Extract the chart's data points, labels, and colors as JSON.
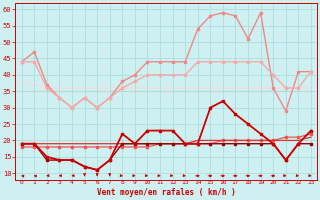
{
  "x": [
    0,
    1,
    2,
    3,
    4,
    5,
    6,
    7,
    8,
    9,
    10,
    11,
    12,
    13,
    14,
    15,
    16,
    17,
    18,
    19,
    20,
    21,
    22,
    23
  ],
  "bg_color": "#cff0f0",
  "grid_color": "#aadddd",
  "xlabel": "Vent moyen/en rafales ( km/h )",
  "ylim": [
    8,
    62
  ],
  "yticks": [
    10,
    15,
    20,
    25,
    30,
    35,
    40,
    45,
    50,
    55,
    60
  ],
  "lines": [
    {
      "values": [
        44,
        47,
        37,
        33,
        30,
        33,
        30,
        33,
        38,
        40,
        44,
        44,
        44,
        44,
        54,
        58,
        59,
        58,
        51,
        59,
        36,
        29,
        41,
        41
      ],
      "color": "#f08888",
      "lw": 1.0,
      "marker": "s",
      "ms": 1.8,
      "zorder": 2
    },
    {
      "values": [
        44,
        44,
        36,
        33,
        30,
        33,
        30,
        33,
        36,
        38,
        40,
        40,
        40,
        40,
        44,
        44,
        44,
        44,
        44,
        44,
        40,
        36,
        36,
        41
      ],
      "color": "#f4aaaa",
      "lw": 1.0,
      "marker": "s",
      "ms": 1.8,
      "zorder": 2
    },
    {
      "values": [
        35,
        35,
        35,
        35,
        35,
        35,
        35,
        35,
        35,
        35,
        35,
        35,
        35,
        35,
        35,
        35,
        35,
        35,
        35,
        35,
        35,
        35,
        35,
        35
      ],
      "color": "#f8cccc",
      "lw": 0.9,
      "marker": null,
      "ms": 0,
      "zorder": 1
    },
    {
      "values": [
        38,
        37,
        36,
        36,
        36,
        36,
        36,
        36,
        36,
        36,
        36,
        36,
        36,
        36,
        36,
        36,
        36,
        36,
        36,
        36,
        36,
        36,
        36,
        36
      ],
      "color": "#fad8d8",
      "lw": 0.9,
      "marker": null,
      "ms": 0,
      "zorder": 1
    },
    {
      "values": [
        19,
        19,
        15,
        14,
        14,
        12,
        11,
        14,
        22,
        19,
        23,
        23,
        23,
        19,
        19,
        30,
        32,
        28,
        25,
        22,
        19,
        14,
        19,
        23
      ],
      "color": "#cc0000",
      "lw": 1.3,
      "marker": "s",
      "ms": 2.0,
      "zorder": 5
    },
    {
      "values": [
        19,
        19,
        19,
        19,
        19,
        19,
        19,
        19,
        19,
        19,
        19,
        19,
        19,
        19,
        20,
        20,
        20,
        20,
        20,
        20,
        20,
        20,
        20,
        21
      ],
      "color": "#dd3333",
      "lw": 0.9,
      "marker": null,
      "ms": 0,
      "zorder": 4
    },
    {
      "values": [
        18,
        18,
        18,
        18,
        18,
        18,
        18,
        18,
        18,
        18,
        18,
        19,
        19,
        19,
        19,
        19,
        20,
        20,
        20,
        20,
        20,
        21,
        21,
        22
      ],
      "color": "#ee5555",
      "lw": 0.9,
      "marker": "s",
      "ms": 1.5,
      "zorder": 3
    },
    {
      "values": [
        19,
        19,
        14,
        14,
        14,
        12,
        11,
        14,
        19,
        19,
        19,
        19,
        19,
        19,
        19,
        19,
        19,
        19,
        19,
        19,
        19,
        14,
        19,
        19
      ],
      "color": "#990000",
      "lw": 1.0,
      "marker": "s",
      "ms": 1.8,
      "zorder": 4
    }
  ],
  "wind_dirs_angles": [
    225,
    225,
    315,
    315,
    315,
    360,
    360,
    360,
    45,
    45,
    45,
    45,
    45,
    45,
    90,
    90,
    90,
    90,
    90,
    90,
    90,
    45,
    45,
    45
  ]
}
